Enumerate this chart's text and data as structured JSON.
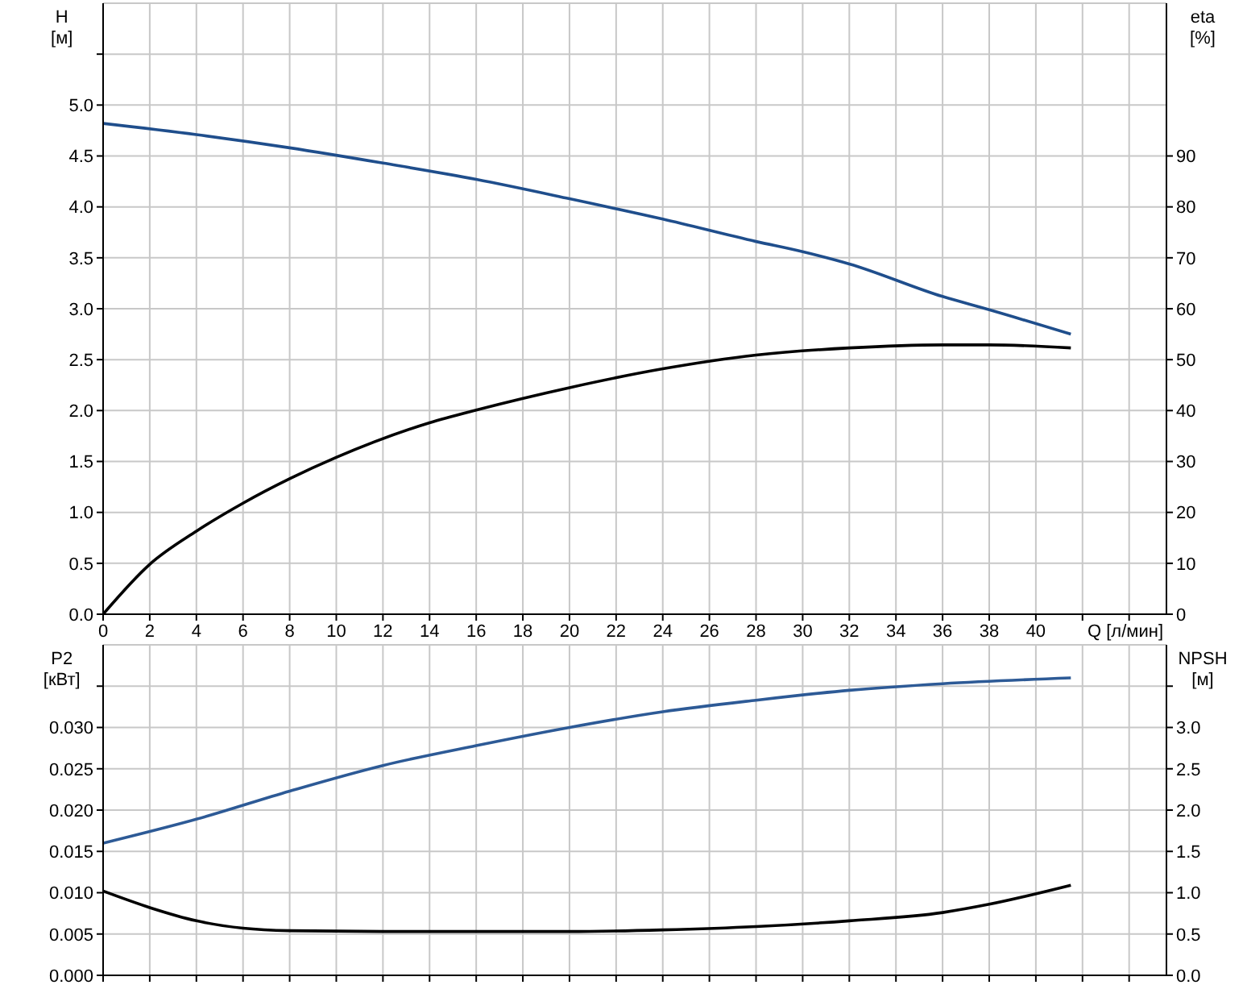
{
  "chart_data": [
    {
      "type": "line",
      "xlabel": "Q [л/мин]",
      "ylabel": "H [м]",
      "y2label": "eta [%]",
      "grid": true,
      "xlim": [
        0,
        45.6
      ],
      "xticks": [
        0,
        2,
        4,
        6,
        8,
        10,
        12,
        14,
        16,
        18,
        20,
        22,
        24,
        26,
        28,
        30,
        32,
        34,
        36,
        38,
        40,
        {
          "value": 42,
          "label": null
        },
        {
          "value": 44,
          "label": null
        }
      ],
      "ylim": [
        0,
        6
      ],
      "yticks": [
        {
          "value": 0,
          "label": "0.0"
        },
        0.5,
        {
          "value": 1,
          "label": "1.0"
        },
        1.5,
        {
          "value": 2,
          "label": "2.0"
        },
        2.5,
        {
          "value": 3,
          "label": "3.0"
        },
        3.5,
        {
          "value": 4,
          "label": "4.0"
        },
        4.5,
        {
          "value": 5,
          "label": "5.0"
        },
        {
          "value": 5.5,
          "label": null
        }
      ],
      "y2lim": [
        0,
        120
      ],
      "y2ticks": [
        0,
        10,
        20,
        30,
        40,
        50,
        60,
        70,
        80,
        90
      ],
      "series": [
        {
          "color": "#1f4e8c",
          "x": [
            0,
            4,
            8,
            12,
            16,
            20,
            24,
            28,
            30,
            32,
            36,
            38,
            41.5
          ],
          "values": [
            4.82,
            4.71,
            4.58,
            4.43,
            4.27,
            4.08,
            3.88,
            3.66,
            3.56,
            3.44,
            3.12,
            2.99,
            2.75
          ]
        },
        {
          "color": "#000000",
          "axis": "y2",
          "x": [
            0,
            2,
            4,
            6,
            8,
            10,
            14,
            16,
            20,
            24,
            28,
            32,
            36,
            38,
            41.5
          ],
          "values": [
            0,
            9.8,
            16.3,
            21.8,
            26.6,
            30.8,
            37.6,
            40.1,
            44.5,
            48.2,
            50.9,
            52.3,
            52.9,
            52.9,
            52.3
          ]
        }
      ]
    },
    {
      "type": "line",
      "ylabel": "P2 [кВт]",
      "y2label": "NPSH [м]",
      "grid": true,
      "tick_labels": "y",
      "xlim": [
        0,
        45.6
      ],
      "xticks": [
        0,
        2,
        4,
        6,
        8,
        10,
        12,
        14,
        16,
        18,
        20,
        22,
        24,
        26,
        28,
        30,
        32,
        34,
        36,
        38,
        40,
        42,
        44
      ],
      "ylim": [
        0,
        0.04
      ],
      "yticks": [
        {
          "value": 0,
          "label": "0.000"
        },
        {
          "value": 0.005,
          "label": "0.005"
        },
        {
          "value": 0.01,
          "label": "0.010"
        },
        {
          "value": 0.015,
          "label": "0.015"
        },
        {
          "value": 0.02,
          "label": "0.020"
        },
        {
          "value": 0.025,
          "label": "0.025"
        },
        {
          "value": 0.03,
          "label": "0.030"
        },
        {
          "value": 0.035,
          "label": null
        }
      ],
      "y2lim": [
        0,
        4
      ],
      "y2ticks": [
        {
          "value": 0,
          "label": "0.0"
        },
        0.5,
        {
          "value": 1,
          "label": "1.0"
        },
        1.5,
        {
          "value": 2,
          "label": "2.0"
        },
        2.5,
        {
          "value": 3,
          "label": "3.0"
        },
        {
          "value": 3.5,
          "label": null
        }
      ],
      "series": [
        {
          "color": "#2d5a96",
          "x": [
            0,
            4,
            8,
            12,
            16,
            20,
            24,
            28,
            32,
            36,
            41.5
          ],
          "values": [
            0.016,
            0.0189,
            0.0223,
            0.0254,
            0.0278,
            0.03,
            0.0319,
            0.0333,
            0.0345,
            0.0353,
            0.036
          ]
        },
        {
          "color": "#000000",
          "axis": "y2",
          "x": [
            0,
            2,
            4,
            6,
            8,
            12,
            20,
            24,
            28,
            32,
            36,
            38,
            41.5
          ],
          "values": [
            1.02,
            0.82,
            0.66,
            0.57,
            0.54,
            0.53,
            0.53,
            0.55,
            0.59,
            0.66,
            0.76,
            0.86,
            1.09
          ]
        }
      ]
    }
  ]
}
